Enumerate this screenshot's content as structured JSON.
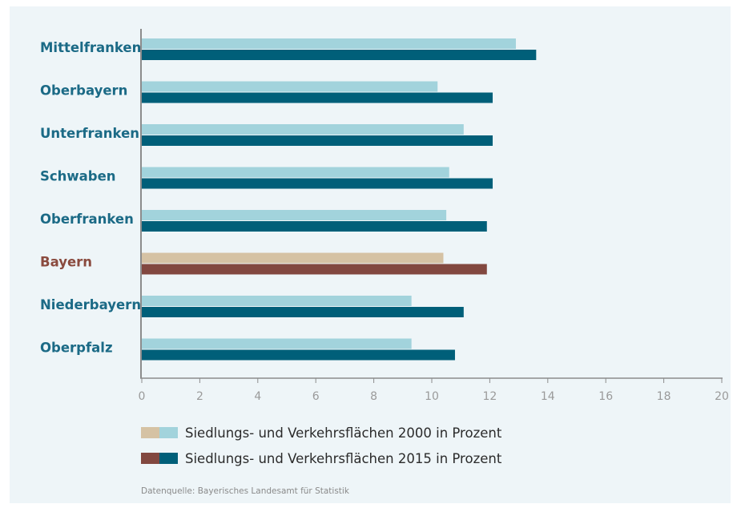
{
  "chart_data": {
    "type": "bar",
    "orientation": "horizontal",
    "categories": [
      "Mittelfranken",
      "Oberbayern",
      "Unterfranken",
      "Schwaben",
      "Oberfranken",
      "Bayern",
      "Niederbayern",
      "Oberpfalz"
    ],
    "highlight_category": "Bayern",
    "series": [
      {
        "name": "Siedlungs- und Verkehrsflächen 2000 in Prozent",
        "values": [
          12.9,
          10.2,
          11.1,
          10.6,
          10.5,
          10.4,
          9.3,
          9.3
        ]
      },
      {
        "name": "Siedlungs- und Verkehrsflächen 2015 in Prozent",
        "values": [
          13.6,
          12.1,
          12.1,
          12.1,
          11.9,
          11.9,
          11.1,
          10.8
        ]
      }
    ],
    "x_ticks": [
      "0",
      "2",
      "4",
      "6",
      "8",
      "10",
      "12",
      "14",
      "16",
      "18",
      "20"
    ],
    "xlim": [
      0,
      20
    ],
    "grid": false,
    "legend_position": "bottom-left",
    "title": "",
    "xlabel": "",
    "ylabel": ""
  },
  "source_text": "Datenquelle: Bayerisches Landesamt für Statistik",
  "colors": {
    "panel_bg": "#eef5f8",
    "series_2000": "#a2d3dc",
    "series_2015": "#005f79",
    "highlight_2000": "#d5c2a4",
    "highlight_2015": "#824840",
    "category_label": "#1b6a86",
    "highlight_label": "#8a4a3e",
    "axis": "#8c8c8c"
  }
}
